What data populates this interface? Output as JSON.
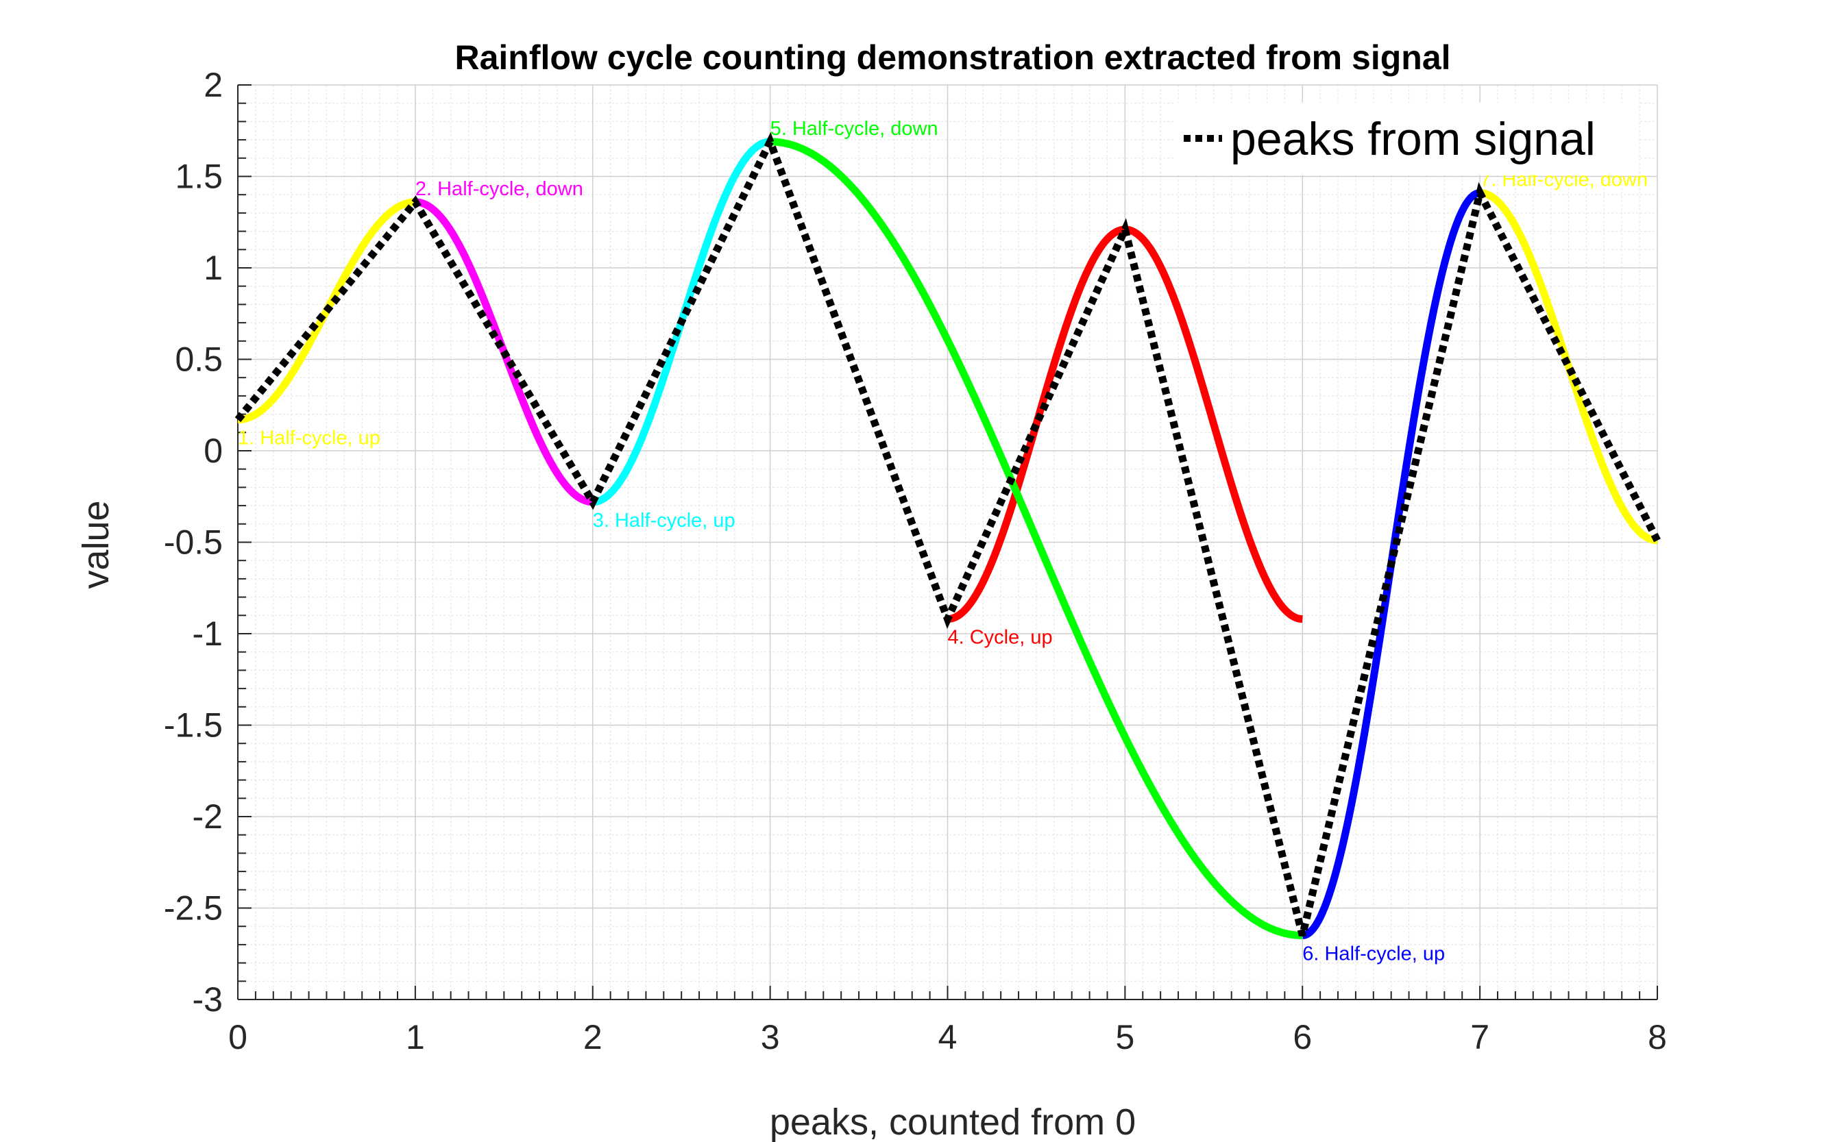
{
  "chart_data": {
    "type": "line",
    "title": "Rainflow cycle counting demonstration extracted from signal",
    "xlabel": "peaks, counted from 0",
    "ylabel": "value",
    "xlim": [
      0,
      8
    ],
    "ylim": [
      -3,
      2
    ],
    "x_ticks": [
      "0",
      "1",
      "2",
      "3",
      "4",
      "5",
      "6",
      "7",
      "8"
    ],
    "y_ticks": [
      "2",
      "1.5",
      "1",
      "0.5",
      "0",
      "-0.5",
      "-1",
      "-1.5",
      "-2",
      "-2.5",
      "-3"
    ],
    "grid": "on (major and minor)",
    "legend": {
      "placement": "top-right",
      "entries": [
        "peaks from signal"
      ]
    },
    "peaks": {
      "name": "peaks from signal",
      "style": "dotted",
      "color": "#000000",
      "x": [
        0,
        1,
        2,
        3,
        4,
        5,
        6,
        7,
        8
      ],
      "y": [
        0.17,
        1.36,
        -0.28,
        1.69,
        -0.92,
        1.21,
        -2.65,
        1.41,
        -0.49
      ]
    },
    "cycles": [
      {
        "label": "1. Half-cycle, up",
        "color": "#ffff00",
        "from": [
          0,
          0.17
        ],
        "to": [
          1,
          1.36
        ]
      },
      {
        "label": "2. Half-cycle, down",
        "color": "#ff00ff",
        "from": [
          1,
          1.36
        ],
        "to": [
          2,
          -0.28
        ]
      },
      {
        "label": "3. Half-cycle, up",
        "color": "#00ffff",
        "from": [
          2,
          -0.28
        ],
        "to": [
          3,
          1.69
        ]
      },
      {
        "label": "4. Cycle, up",
        "color": "#ff0000",
        "from": [
          4,
          -0.92
        ],
        "to": [
          5,
          1.21
        ]
      },
      {
        "label": "5. Half-cycle, down",
        "color": "#00ff00",
        "from": [
          3,
          1.69
        ],
        "to": [
          6,
          -2.65
        ]
      },
      {
        "label": "6. Half-cycle, up",
        "color": "#0000ff",
        "from": [
          6,
          -2.65
        ],
        "to": [
          7,
          1.41
        ]
      },
      {
        "label": "7. Half-cycle, down",
        "color": "#ffff00",
        "from": [
          7,
          1.41
        ],
        "to": [
          8,
          -0.49
        ]
      }
    ]
  }
}
